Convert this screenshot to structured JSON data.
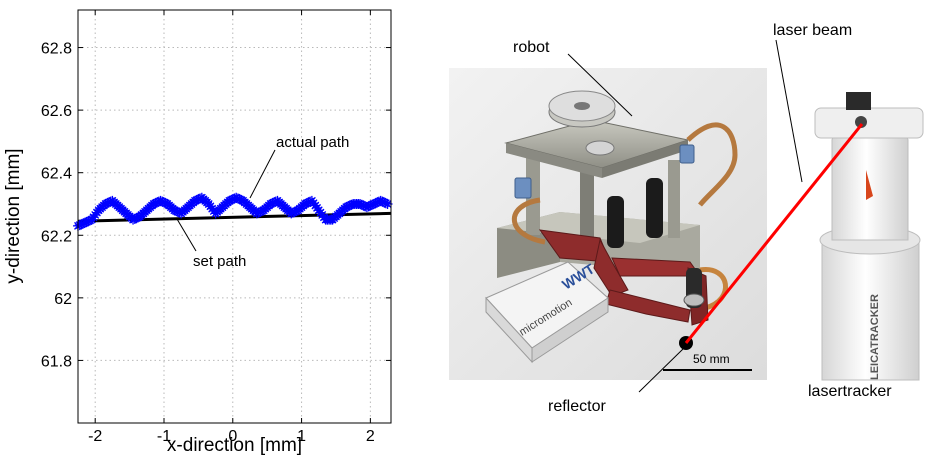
{
  "chart_data": {
    "type": "line",
    "xlabel": "x-direction [mm]",
    "ylabel": "y-direction [mm]",
    "xlim": [
      -2.25,
      2.3
    ],
    "ylim": [
      61.6,
      62.92
    ],
    "x_ticks": [
      -2,
      -1,
      0,
      1,
      2
    ],
    "x_tick_labels": [
      "-2",
      "-1",
      "0",
      "1",
      "2"
    ],
    "y_ticks": [
      61.8,
      62.0,
      62.2,
      62.4,
      62.6,
      62.8
    ],
    "y_tick_labels": [
      "61.8",
      "62",
      "62.2",
      "62.4",
      "62.6",
      "62.8"
    ],
    "grid": true,
    "series": [
      {
        "name": "set path",
        "color": "#000000",
        "style": "solid",
        "x": [
          -2.25,
          2.3
        ],
        "y": [
          62.245,
          62.27
        ]
      },
      {
        "name": "actual path",
        "color": "#0000ff",
        "marker": "star",
        "x": [
          -2.25,
          -2.15,
          -2.05,
          -1.95,
          -1.85,
          -1.75,
          -1.65,
          -1.55,
          -1.45,
          -1.35,
          -1.25,
          -1.15,
          -1.05,
          -0.95,
          -0.85,
          -0.75,
          -0.65,
          -0.55,
          -0.45,
          -0.35,
          -0.25,
          -0.15,
          -0.05,
          0.05,
          0.15,
          0.25,
          0.35,
          0.45,
          0.55,
          0.65,
          0.75,
          0.85,
          0.95,
          1.05,
          1.15,
          1.25,
          1.35,
          1.45,
          1.55,
          1.65,
          1.75,
          1.85,
          1.95,
          2.05,
          2.15,
          2.25
        ],
        "y": [
          62.23,
          62.24,
          62.25,
          62.28,
          62.3,
          62.31,
          62.29,
          62.27,
          62.25,
          62.26,
          62.28,
          62.3,
          62.31,
          62.3,
          62.28,
          62.27,
          62.29,
          62.31,
          62.32,
          62.3,
          62.27,
          62.29,
          62.31,
          62.32,
          62.31,
          62.29,
          62.27,
          62.28,
          62.3,
          62.31,
          62.29,
          62.27,
          62.28,
          62.3,
          62.31,
          62.28,
          62.25,
          62.25,
          62.27,
          62.29,
          62.3,
          62.3,
          62.29,
          62.3,
          62.31,
          62.3
        ]
      }
    ],
    "annotations": [
      {
        "text": "actual path",
        "x": 0.6,
        "y": 62.468
      },
      {
        "text": "set path",
        "x": -0.6,
        "y": 62.14
      }
    ]
  },
  "photo": {
    "labels": {
      "robot": "robot",
      "laser_beam": "laser beam",
      "reflector": "reflector",
      "lasertracker": "lasertracker"
    },
    "scale_bar": "50 mm",
    "box_brand": "WWT",
    "box_text": "micromotion",
    "tracker_text": "LEICATRACKER",
    "colors": {
      "background": "#e9e9e9",
      "robot_arms": "#8e2c2c",
      "base_metal": "#a8a89e",
      "connectors": "#6c8fc0",
      "laser": "#ff0000",
      "tracker_body": "#f2f2f2"
    }
  }
}
